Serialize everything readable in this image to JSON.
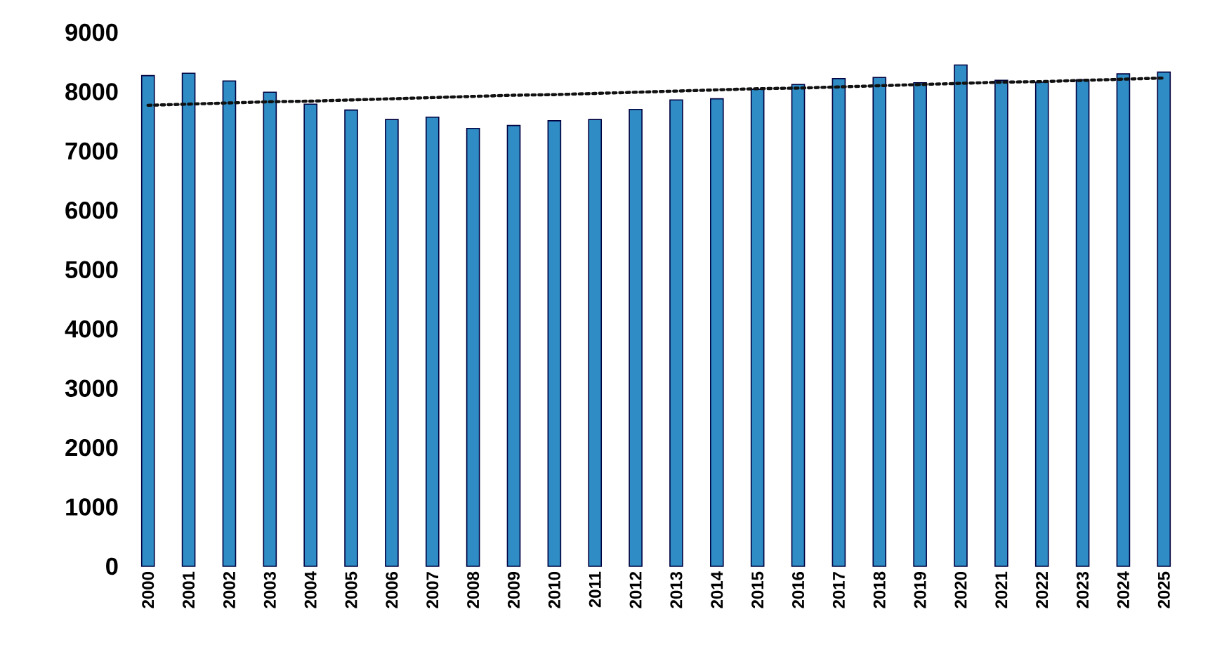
{
  "chart_data": {
    "type": "bar",
    "categories": [
      "2000",
      "2001",
      "2002",
      "2003",
      "2004",
      "2005",
      "2006",
      "2007",
      "2008",
      "2009",
      "2010",
      "2011",
      "2012",
      "2013",
      "2014",
      "2015",
      "2016",
      "2017",
      "2018",
      "2019",
      "2020",
      "2021",
      "2022",
      "2023",
      "2024",
      "2025"
    ],
    "series": [
      {
        "color": "#2f8cc4",
        "values": [
          8270,
          8310,
          8180,
          7990,
          7790,
          7690,
          7530,
          7570,
          7380,
          7430,
          7510,
          7530,
          7700,
          7860,
          7880,
          8040,
          8120,
          8220,
          8240,
          8150,
          8450,
          8190,
          8160,
          8200,
          8300,
          8330
        ]
      },
      {
        "type": "line",
        "color": "#111111",
        "line_style": "dotted",
        "values": [
          7770,
          7790,
          7810,
          7830,
          7840,
          7860,
          7880,
          7900,
          7920,
          7940,
          7950,
          7970,
          7990,
          8010,
          8030,
          8050,
          8060,
          8080,
          8100,
          8120,
          8140,
          8160,
          8170,
          8190,
          8210,
          8230
        ]
      }
    ],
    "ylim": [
      0,
      9000
    ],
    "yticks": [
      0,
      1000,
      2000,
      3000,
      4000,
      5000,
      6000,
      7000,
      8000,
      9000
    ]
  }
}
